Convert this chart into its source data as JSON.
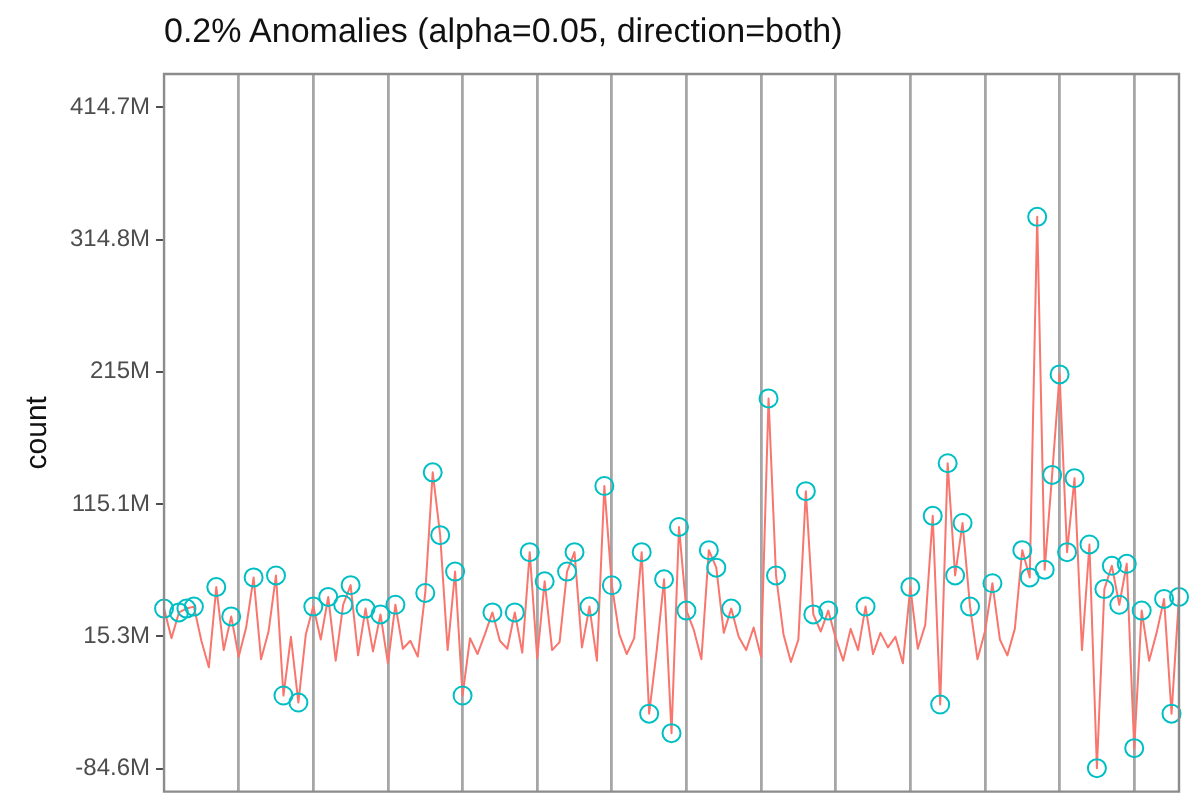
{
  "chart_data": {
    "type": "line",
    "title": "0.2% Anomalies (alpha=0.05, direction=both)",
    "ylabel": "count",
    "categories": [
      null,
      null,
      null,
      null,
      null,
      null,
      null,
      null,
      null,
      null,
      null,
      null,
      null,
      null,
      null,
      null,
      null,
      null,
      null,
      null,
      null,
      null,
      null,
      null,
      null,
      null,
      null,
      null,
      null,
      null,
      null,
      null,
      null,
      null,
      null,
      null,
      null,
      null,
      null,
      null,
      null,
      null,
      null,
      null,
      null,
      null,
      null,
      null,
      null,
      null,
      null,
      null,
      null,
      null,
      null,
      null,
      null,
      null,
      null,
      null,
      null,
      null,
      null,
      null,
      null,
      null,
      null,
      null,
      null,
      null,
      null,
      null,
      null,
      null,
      null,
      null,
      null,
      null,
      null,
      null,
      null,
      null,
      null,
      null,
      null,
      null,
      null,
      null,
      null,
      null,
      null,
      null,
      null,
      null,
      null,
      null,
      null,
      null,
      null,
      null,
      null,
      null,
      null,
      null,
      null,
      null,
      null,
      null,
      null,
      null,
      null,
      null,
      null,
      null,
      null,
      null,
      null,
      null,
      null,
      null,
      null,
      null,
      null,
      null,
      null,
      null,
      null,
      null,
      null,
      null,
      null,
      null,
      null,
      null,
      null,
      null,
      null
    ],
    "ylim": [
      -101.8,
      439.7
    ],
    "yticks": [
      {
        "value": -84.6,
        "label": "-84.6M"
      },
      {
        "value": 15.3,
        "label": "15.3M"
      },
      {
        "value": 115.1,
        "label": "115.1M"
      },
      {
        "value": 215,
        "label": "215M"
      },
      {
        "value": 314.8,
        "label": "314.8M"
      },
      {
        "value": 414.7,
        "label": "414.7M"
      }
    ],
    "tick_labels": "y",
    "grid": "x",
    "legend": false,
    "series": [
      {
        "color": "#f8766d",
        "marker": "none",
        "values": [
          36.3,
          14,
          33.4,
          36.3,
          37.8,
          12,
          -8,
          52.5,
          5,
          30.4,
          0,
          22,
          59.8,
          -2,
          19,
          61.3,
          -29.3,
          15,
          -34.6,
          17,
          37.8,
          13,
          45.1,
          -3,
          39.2,
          54.0,
          1,
          36.3,
          4,
          31.9,
          -5,
          39.2,
          6,
          12,
          0,
          48.1,
          139.1,
          91.7,
          5,
          64.2,
          -29.3,
          14,
          2,
          17,
          33.4,
          12,
          6,
          33.4,
          3,
          78.9,
          -1,
          56.9,
          5,
          11,
          64.2,
          78.9,
          7,
          37.8,
          -3,
          128.8,
          53.9,
          17,
          2,
          14,
          78.9,
          -43.0,
          4,
          58.4,
          -57.7,
          97.9,
          34.8,
          20,
          -2,
          80.4,
          67.2,
          18,
          36.3,
          15,
          5,
          22,
          0,
          194.9,
          61.3,
          17,
          -4,
          13,
          124.9,
          31.9,
          19,
          34.8,
          14,
          -3,
          21,
          5,
          37.8,
          2,
          18,
          7,
          15,
          -5,
          52.5,
          6,
          24,
          106.3,
          -36.1,
          146.0,
          61.3,
          100.9,
          37.8,
          -2,
          19,
          55.4,
          13,
          1,
          21,
          80.4,
          59.8,
          331.9,
          65.7,
          137.2,
          213.0,
          78.9,
          134.7,
          5,
          84.7,
          -84.1,
          51.0,
          68.6,
          39.2,
          70.1,
          -69.0,
          34.8,
          -3,
          18,
          43.6,
          -43.0,
          45.1
        ]
      },
      {
        "type": "scatter",
        "color": "#00bfc4",
        "marker": "circle",
        "values": [
          36.3,
          null,
          33.4,
          36.3,
          37.8,
          null,
          null,
          52.5,
          null,
          30.4,
          null,
          null,
          59.8,
          null,
          null,
          61.3,
          -29.3,
          null,
          -34.6,
          null,
          37.8,
          null,
          45.1,
          null,
          39.2,
          54.0,
          null,
          36.3,
          null,
          31.9,
          null,
          39.2,
          null,
          null,
          null,
          48.1,
          139.1,
          91.7,
          null,
          64.2,
          -29.3,
          null,
          null,
          null,
          33.4,
          null,
          null,
          33.4,
          null,
          78.9,
          null,
          56.9,
          null,
          null,
          64.2,
          78.9,
          null,
          37.8,
          null,
          128.8,
          53.9,
          null,
          null,
          null,
          78.9,
          -43.0,
          null,
          58.4,
          -57.7,
          97.9,
          34.8,
          null,
          null,
          80.4,
          67.2,
          null,
          36.3,
          null,
          null,
          null,
          null,
          194.9,
          61.3,
          null,
          null,
          null,
          124.9,
          31.9,
          null,
          34.8,
          null,
          null,
          null,
          null,
          37.8,
          null,
          null,
          null,
          null,
          null,
          52.5,
          null,
          null,
          106.3,
          -36.1,
          146.0,
          61.3,
          100.9,
          37.8,
          null,
          null,
          55.4,
          null,
          null,
          null,
          80.4,
          59.8,
          331.9,
          65.7,
          137.2,
          213.0,
          78.9,
          134.7,
          null,
          84.7,
          -84.1,
          51.0,
          68.6,
          39.2,
          70.1,
          -69.0,
          34.8,
          null,
          null,
          43.6,
          -43.0,
          45.1
        ]
      }
    ]
  }
}
